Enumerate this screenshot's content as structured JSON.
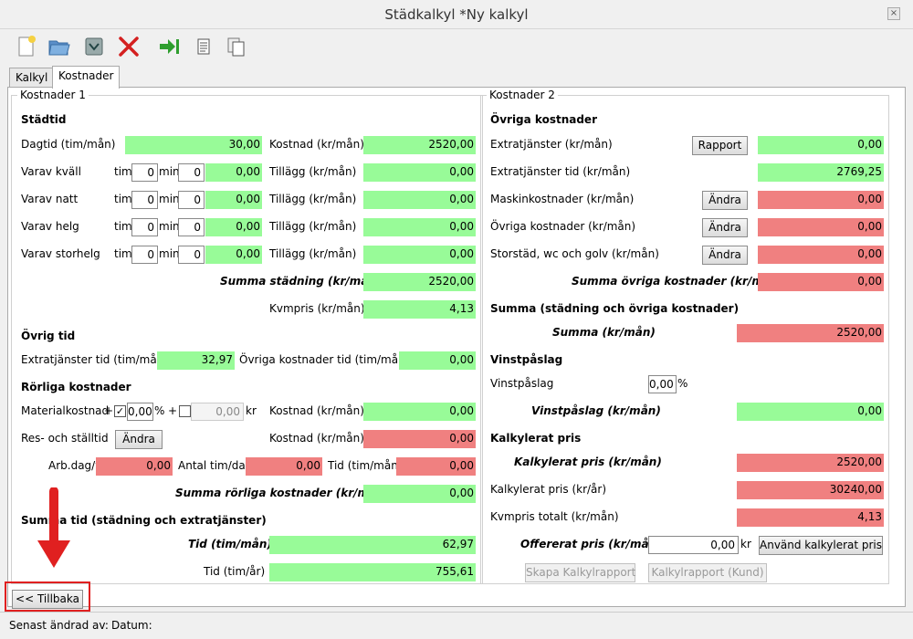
{
  "window": {
    "title": "Städkalkyl *Ny kalkyl",
    "close": "×"
  },
  "toolbar": {
    "icons": [
      "new-document-icon",
      "open-folder-icon",
      "save-icon",
      "delete-icon",
      "export-icon",
      "document-icon",
      "copy-icon"
    ]
  },
  "tabs": [
    "Kalkyl",
    "Kostnader"
  ],
  "active_tab": "Kostnader",
  "k1": {
    "title": "Kostnader 1",
    "stadtid": {
      "header": "Städtid",
      "dagtid": {
        "label": "Dagtid (tim/mån)",
        "value": "30,00",
        "cost_label": "Kostnad (kr/mån)",
        "cost": "2520,00"
      },
      "tim": "tim",
      "min": "min",
      "rows": [
        {
          "label": "Varav kväll",
          "tim": "0",
          "min": "0",
          "value": "0,00",
          "add_label": "Tillägg (kr/mån)",
          "add": "0,00"
        },
        {
          "label": "Varav natt",
          "tim": "0",
          "min": "0",
          "value": "0,00",
          "add_label": "Tillägg (kr/mån)",
          "add": "0,00"
        },
        {
          "label": "Varav helg",
          "tim": "0",
          "min": "0",
          "value": "0,00",
          "add_label": "Tillägg (kr/mån)",
          "add": "0,00"
        },
        {
          "label": "Varav storhelg",
          "tim": "0",
          "min": "0",
          "value": "0,00",
          "add_label": "Tillägg (kr/mån)",
          "add": "0,00"
        }
      ],
      "summa_label": "Summa städning (kr/mån)",
      "summa": "2520,00",
      "kvm_label": "Kvmpris (kr/mån)",
      "kvm": "4,13"
    },
    "ovrig_tid": {
      "header": "Övrig tid",
      "extra_label": "Extratjänster tid (tim/mån)",
      "extra": "32,97",
      "ovriga_label": "Övriga kostnader tid (tim/mån)",
      "ovriga": "0,00"
    },
    "rorliga": {
      "header": "Rörliga kostnader",
      "material_label": "Materialkostnad",
      "plus1": "+",
      "check1": "✓",
      "percent_value": "0,00",
      "percent_sign": "%",
      "plus2": "+",
      "kr_value": "0,00",
      "kr": "kr",
      "material_cost_label": "Kostnad (kr/mån)",
      "material_cost": "0,00",
      "res_label": "Res- och ställtid",
      "andra": "Ändra",
      "res_cost_label": "Kostnad (kr/mån)",
      "res_cost": "0,00",
      "arbdag_label": "Arb.dag/v",
      "arbdag": "0,00",
      "antal_label": "Antal tim/dag",
      "antal": "0,00",
      "tid_label": "Tid (tim/mån)",
      "tid": "0,00",
      "summa_label": "Summa rörliga kostnader (kr/mån)",
      "summa": "0,00"
    },
    "summa_tid": {
      "header": "Summa tid (städning och extratjänster)",
      "tid_man_label": "Tid (tim/mån)",
      "tid_man": "62,97",
      "tid_ar_label": "Tid (tim/år)",
      "tid_ar": "755,61"
    }
  },
  "k2": {
    "title": "Kostnader 2",
    "ovriga": {
      "header": "Övriga kostnader",
      "extra_label": "Extratjänster (kr/mån)",
      "rapport": "Rapport",
      "extra": "0,00",
      "extra_tid_label": "Extratjänster tid (kr/mån)",
      "extra_tid": "2769,25",
      "maskin_label": "Maskinkostnader (kr/mån)",
      "maskin": "0,00",
      "ovriga_label": "Övriga kostnader (kr/mån)",
      "ovriga": "0,00",
      "storstad_label": "Storstäd, wc och golv (kr/mån)",
      "storstad": "0,00",
      "andra": "Ändra",
      "summa_label": "Summa övriga kostnader (kr/mån)",
      "summa": "0,00"
    },
    "summa": {
      "header": "Summa (städning och övriga kostnader)",
      "label": "Summa (kr/mån)",
      "value": "2520,00"
    },
    "vinst": {
      "header": "Vinstpåslag",
      "label": "Vinstpåslag",
      "input": "0,00",
      "percent": "%",
      "result_label": "Vinstpåslag (kr/mån)",
      "result": "0,00"
    },
    "kalkylerat": {
      "header": "Kalkylerat pris",
      "man_label": "Kalkylerat pris (kr/mån)",
      "man": "2520,00",
      "ar_label": "Kalkylerat pris (kr/år)",
      "ar": "30240,00",
      "kvm_label": "Kvmpris totalt (kr/mån)",
      "kvm": "4,13",
      "offer_label": "Offererat pris (kr/mån)",
      "offer": "0,00",
      "kr": "kr",
      "use_btn": "Använd kalkylerat pris",
      "report_btn": "Skapa Kalkylrapport",
      "report_kund_btn": "Kalkylrapport (Kund)"
    }
  },
  "back_button": "<< Tillbaka",
  "status": {
    "changed_by": "Senast ändrad av:",
    "date": "Datum:"
  },
  "colors": {
    "green": "#98fb98",
    "red": "#f08080",
    "arrow": "#e02020"
  }
}
